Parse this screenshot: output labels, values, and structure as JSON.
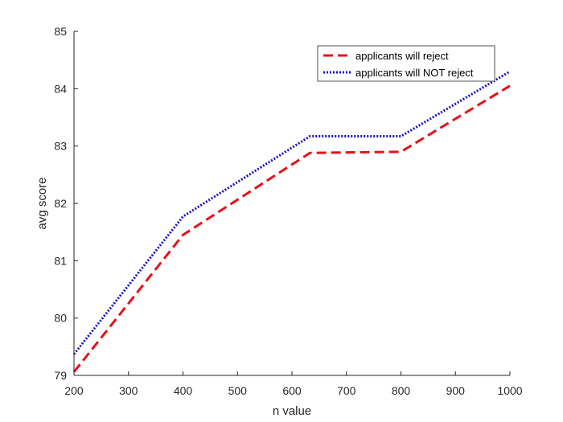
{
  "chart_data": {
    "type": "line",
    "xlabel": "n value",
    "ylabel": "avg score",
    "xlim": [
      200,
      1000
    ],
    "ylim": [
      79,
      85
    ],
    "xticks": [
      200,
      300,
      400,
      500,
      600,
      700,
      800,
      900,
      1000
    ],
    "yticks": [
      79,
      80,
      81,
      82,
      83,
      84,
      85
    ],
    "grid": false,
    "legend_position": "top-right",
    "series": [
      {
        "name": "applicants will reject",
        "color": "#e8101a",
        "style": "dashed",
        "x": [
          200,
          400,
          633,
          800,
          1000
        ],
        "y": [
          79.06,
          81.45,
          82.88,
          82.9,
          84.05
        ]
      },
      {
        "name": "applicants will NOT reject",
        "color": "#1a10c8",
        "style": "dotted",
        "x": [
          200,
          400,
          633,
          800,
          1000
        ],
        "y": [
          79.37,
          81.77,
          83.17,
          83.17,
          84.3
        ]
      }
    ]
  }
}
